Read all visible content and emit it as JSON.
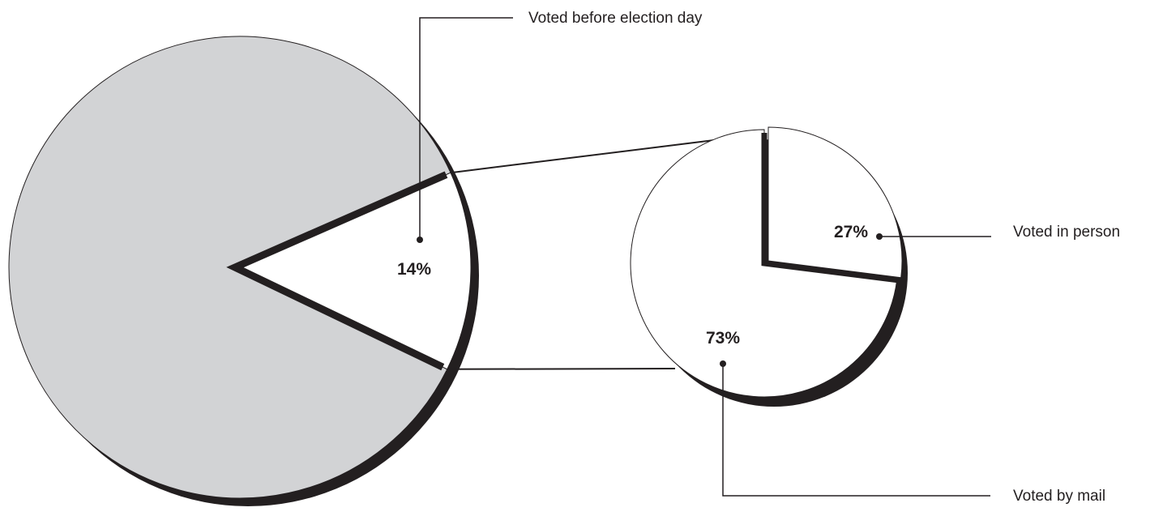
{
  "chart_data": [
    {
      "type": "pie",
      "slices": [
        {
          "label": "",
          "value": 86
        },
        {
          "label": "Voted before election day",
          "value": 14,
          "value_label": "14%"
        }
      ],
      "colors": {
        "remainder": "#d2d3d5",
        "highlight": "#ffffff",
        "shadow": "#231f20",
        "outline": "#231f20"
      }
    },
    {
      "type": "pie",
      "breakdown_of": "Voted before election day",
      "slices": [
        {
          "label": "Voted by mail",
          "value": 73,
          "value_label": "73%"
        },
        {
          "label": "Voted in person",
          "value": 27,
          "value_label": "27%"
        }
      ],
      "colors": {
        "fill": "#ffffff",
        "shadow": "#231f20",
        "outline": "#231f20"
      }
    }
  ],
  "callouts": {
    "before_election_day": "Voted before election day",
    "in_person": "Voted in person",
    "by_mail": "Voted by mail"
  }
}
